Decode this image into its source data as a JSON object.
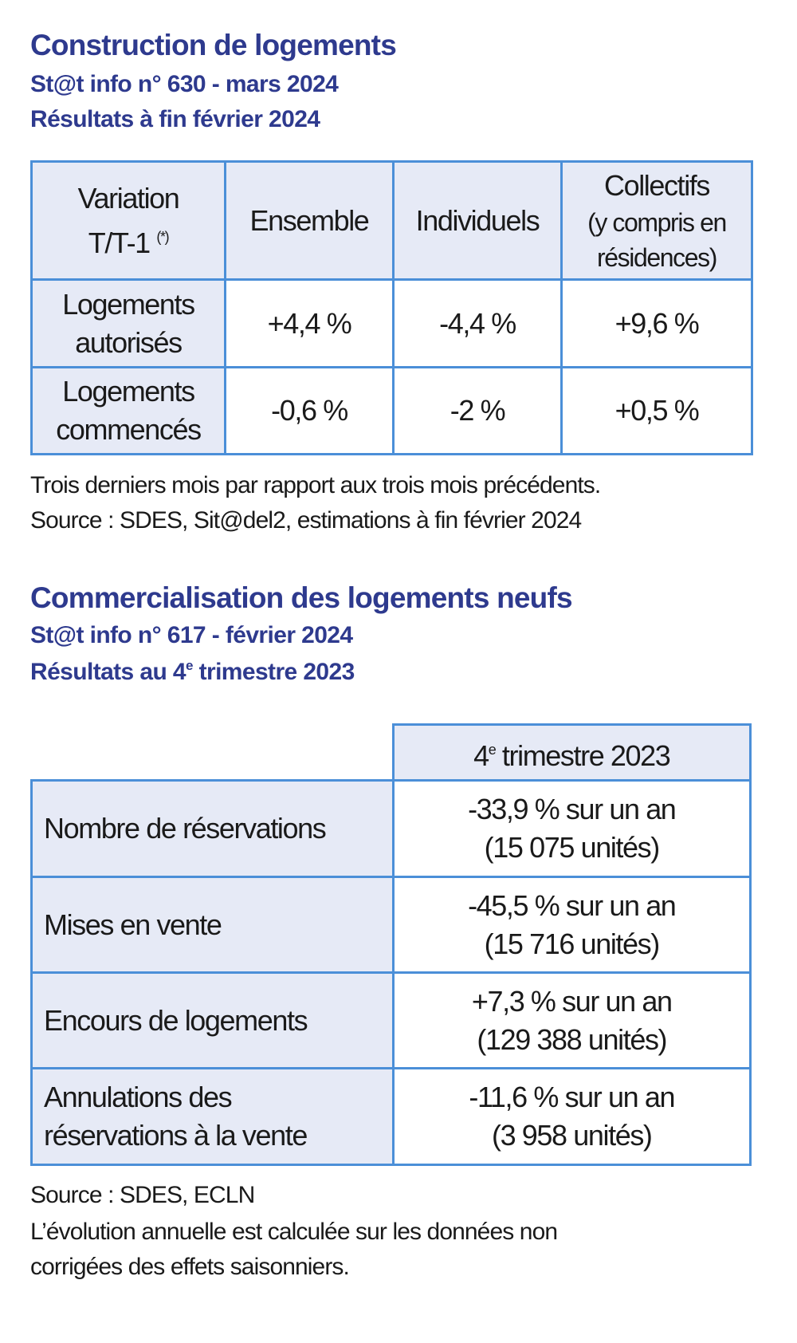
{
  "section1": {
    "title": "Construction de logements",
    "subtitle": "St@t info n° 630 - mars 2024",
    "results": "Résultats à fin février 2024",
    "table": {
      "corner_line1": "Variation",
      "corner_line2": "T/T-1",
      "corner_note": "(*)",
      "columns": [
        "Ensemble",
        "Individuels",
        "Collectifs"
      ],
      "collectifs_sub1": "(y compris en",
      "collectifs_sub2": "résidences)",
      "rows": [
        {
          "label1": "Logements",
          "label2": "autorisés",
          "values": [
            "+4,4 %",
            "-4,4 %",
            "+9,6 %"
          ]
        },
        {
          "label1": "Logements",
          "label2": "commencés",
          "values": [
            "-0,6 %",
            "-2 %",
            "+0,5 %"
          ]
        }
      ]
    },
    "note1": "Trois derniers mois par rapport aux trois mois précédents.",
    "note2": "Source : SDES, Sit@del2, estimations à fin février 2024"
  },
  "section2": {
    "title": "Commercialisation des logements neufs",
    "subtitle": "St@t info n° 617 - février 2024",
    "results_prefix": "Résultats au 4",
    "results_sup": "e",
    "results_suffix": " trimestre 2023",
    "table": {
      "header_prefix": "4",
      "header_sup": "e",
      "header_suffix": " trimestre 2023",
      "rows": [
        {
          "label1": "Nombre de réservations",
          "label2": "",
          "value1": "-33,9 % sur un an",
          "value2": "(15 075 unités)"
        },
        {
          "label1": "Mises en vente",
          "label2": "",
          "value1": "-45,5 % sur un an",
          "value2": "(15 716 unités)"
        },
        {
          "label1": "Encours de logements",
          "label2": "",
          "value1": "+7,3 % sur un an",
          "value2": "(129 388 unités)"
        },
        {
          "label1": "Annulations des",
          "label2": "réservations à la vente",
          "value1": "-11,6 % sur un an",
          "value2": "(3 958 unités)"
        }
      ]
    },
    "note1": "Source : SDES, ECLN",
    "note2": "L’évolution annuelle est calculée sur les données non",
    "note3": "corrigées des effets saisonniers."
  },
  "colors": {
    "title": "#2e3a8e",
    "border": "#4b8fd8",
    "header_bg": "#e6eaf6"
  }
}
